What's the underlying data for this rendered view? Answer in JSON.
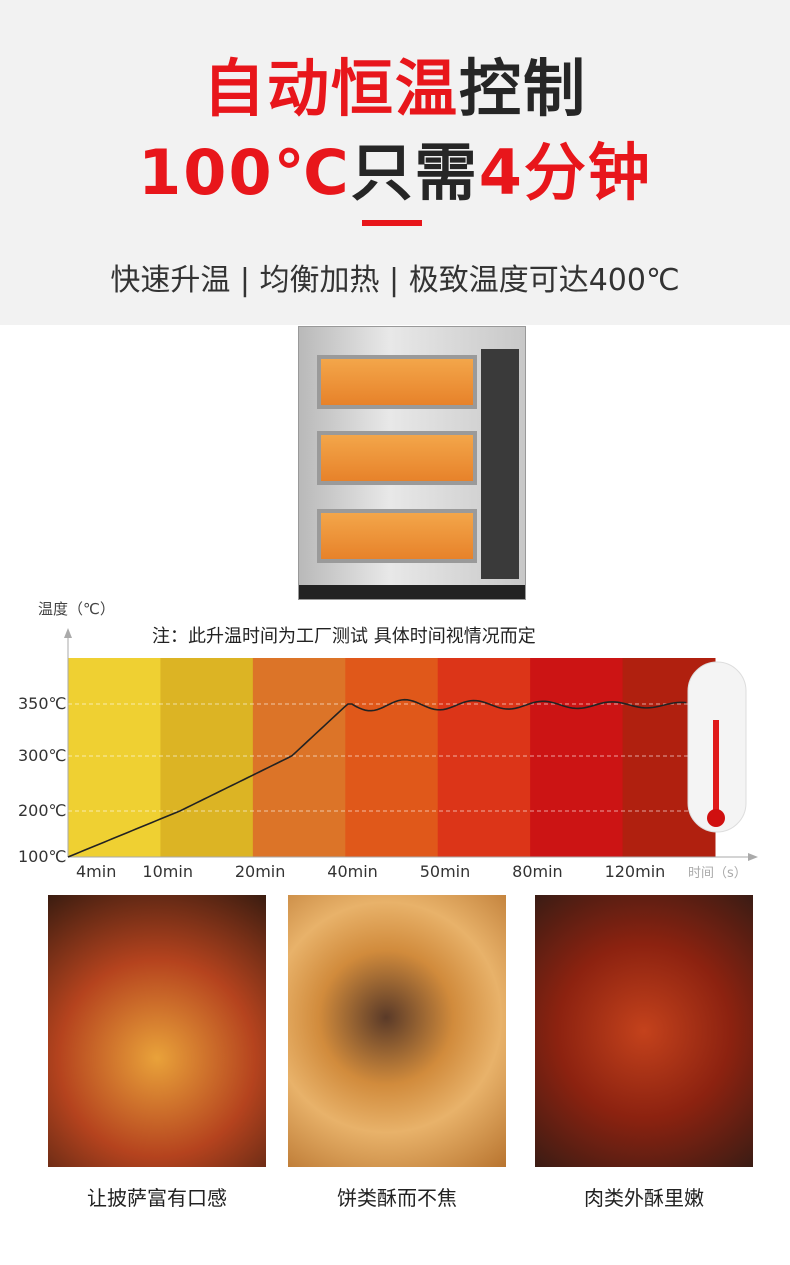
{
  "header": {
    "line1_red": "自动恒温",
    "line1_dark": "控制",
    "line2_red1": "100℃",
    "line2_dark": "只需",
    "line2_red2": "4分钟",
    "subtitle": "快速升温 | 均衡加热 | 极致温度可达400℃"
  },
  "chart_data": {
    "type": "line",
    "ylabel": "温度（℃）",
    "xlabel": "时间（s）",
    "note": "注：此升温时间为工厂测试  具体时间视情况而定",
    "categories": [
      "4min",
      "10min",
      "20min",
      "40min",
      "50min",
      "80min",
      "120min"
    ],
    "yticks": [
      "100℃",
      "200℃",
      "300℃",
      "350℃"
    ],
    "band_colors": [
      "#efd032",
      "#dcb424",
      "#dc7428",
      "#e0581a",
      "#dc3518",
      "#cc1414",
      "#b0200f"
    ],
    "series": [
      {
        "values": [
          100,
          200,
          300,
          350,
          350,
          350,
          350
        ]
      }
    ],
    "grid": true
  },
  "gallery": [
    {
      "caption": "让披萨富有口感"
    },
    {
      "caption": "饼类酥而不焦"
    },
    {
      "caption": "肉类外酥里嫩"
    }
  ]
}
